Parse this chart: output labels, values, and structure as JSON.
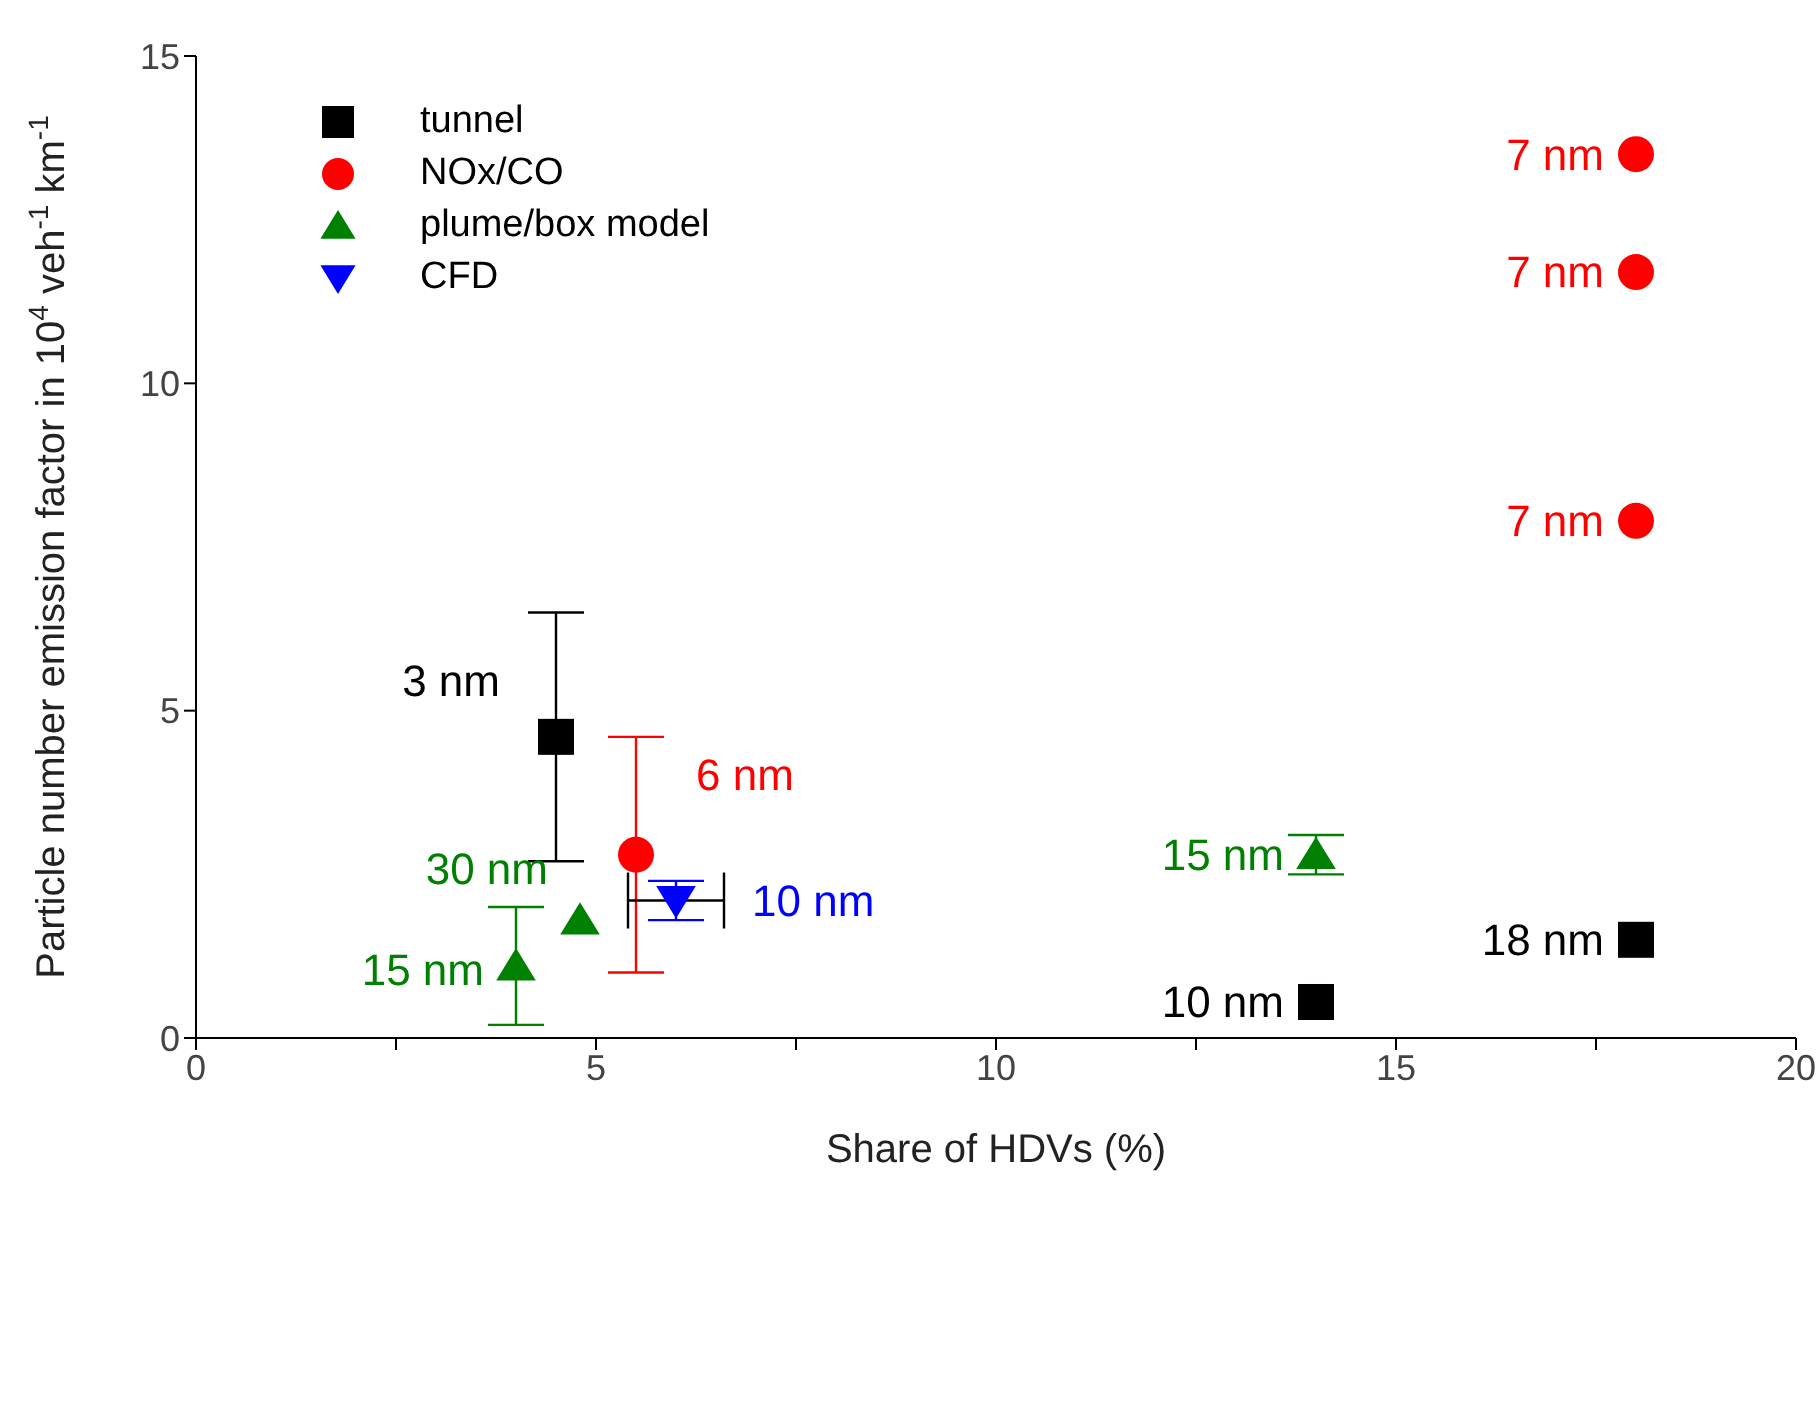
{
  "chart_data": {
    "type": "scatter",
    "xlabel": "Share of HDVs (%)",
    "ylabel": "Particle number emission factor in 10$^{4}$ veh$^{-1}$ km$^{-1}$",
    "xlim": [
      0,
      20
    ],
    "xticks": [
      0,
      {
        "value": 2.5,
        "label": null
      },
      5,
      {
        "value": 7.5,
        "label": null
      },
      10,
      {
        "value": 12.5,
        "label": null
      },
      15,
      {
        "value": 17.5,
        "label": null
      },
      20
    ],
    "ylim": [
      0,
      15
    ],
    "yticks": [
      0,
      5,
      10,
      15
    ],
    "legend": "top left",
    "series": [
      {
        "name": "tunnel",
        "color": "#000000",
        "marker": "square",
        "x": [
          4.5,
          14,
          18
        ],
        "values": [
          4.6,
          0.55,
          1.5
        ],
        "errors": [
          [
            2.7,
            6.5
          ],
          null,
          null
        ]
      },
      {
        "name": "NOx/CO",
        "color": "#ff0000",
        "marker": "circle",
        "x": [
          5.5,
          18,
          18,
          18
        ],
        "values": [
          2.8,
          13.5,
          11.7,
          7.9
        ],
        "errors": [
          [
            1.0,
            4.6
          ],
          null,
          null,
          null
        ]
      },
      {
        "name": "plume/box model",
        "color": "#008000",
        "marker": "triangle",
        "x": [
          4,
          4.8,
          14
        ],
        "values": [
          1.1,
          1.8,
          2.8
        ],
        "errors": [
          [
            0.2,
            2.0
          ],
          null,
          [
            2.5,
            3.1
          ]
        ]
      },
      {
        "name": "CFD",
        "color": "#0000ff",
        "marker": "triangle-down",
        "x": [
          6
        ],
        "values": [
          2.1
        ],
        "errors": [
          [
            1.8,
            2.4
          ]
        ],
        "xerrors": [
          [
            5.4,
            6.6
          ]
        ]
      }
    ],
    "annotations": [
      {
        "text": "3 nm",
        "x": 4.5,
        "y": 4.6
      },
      {
        "text": "10 nm",
        "x": 14,
        "y": 0.55
      },
      {
        "text": "18 nm",
        "x": 18,
        "y": 1.5
      },
      {
        "text": "6 nm",
        "x": 5.5,
        "y": 2.8
      },
      {
        "text": "7 nm",
        "x": 18,
        "y": 13.5
      },
      {
        "text": "7 nm",
        "x": 18,
        "y": 11.7
      },
      {
        "text": "7 nm",
        "x": 18,
        "y": 7.9
      },
      {
        "text": "15 nm",
        "x": 4,
        "y": 1.1
      },
      {
        "text": "30 nm",
        "x": 4.8,
        "y": 1.8
      },
      {
        "text": "15 nm",
        "x": 14,
        "y": 2.8
      },
      {
        "text": "10 nm",
        "x": 6,
        "y": 2.1
      }
    ]
  }
}
